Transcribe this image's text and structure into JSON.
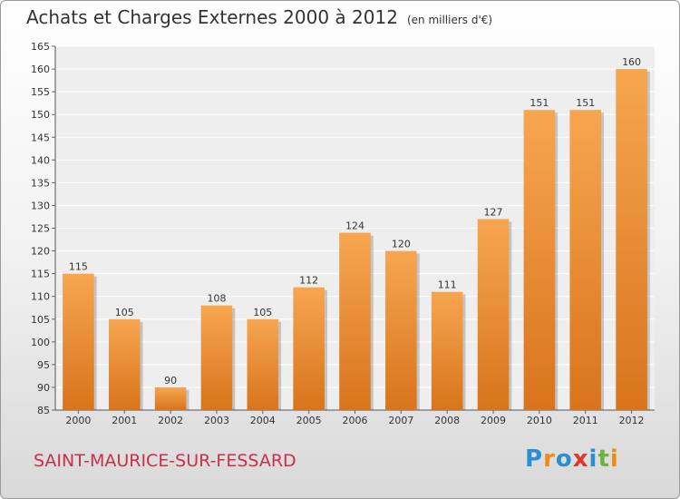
{
  "chart_data": {
    "type": "bar",
    "title": "Achats et Charges Externes 2000 à 2012",
    "subtitle": "(en milliers d'€)",
    "categories": [
      "2000",
      "2001",
      "2002",
      "2003",
      "2004",
      "2005",
      "2006",
      "2007",
      "2008",
      "2009",
      "2010",
      "2011",
      "2012"
    ],
    "values": [
      115,
      105,
      90,
      108,
      105,
      112,
      124,
      120,
      111,
      127,
      151,
      151,
      160
    ],
    "ylim": [
      85,
      165
    ],
    "yticks": [
      85,
      90,
      95,
      100,
      105,
      110,
      115,
      120,
      125,
      130,
      135,
      140,
      145,
      150,
      155,
      160,
      165
    ],
    "grid": true,
    "bar_color": "#f39a3c",
    "legend": "none"
  },
  "footer": {
    "location": "SAINT-MAURICE-SUR-FESSARD",
    "location_color": "#c8304b"
  },
  "logo": {
    "letters": [
      "P",
      "r",
      "o",
      "x",
      "i",
      "t",
      "i"
    ],
    "colors": [
      "#2a8fd0",
      "#f08a1c",
      "#2a8fd0",
      "#e0362c",
      "#2a8fd0",
      "#6cb33f",
      "#f08a1c"
    ]
  }
}
